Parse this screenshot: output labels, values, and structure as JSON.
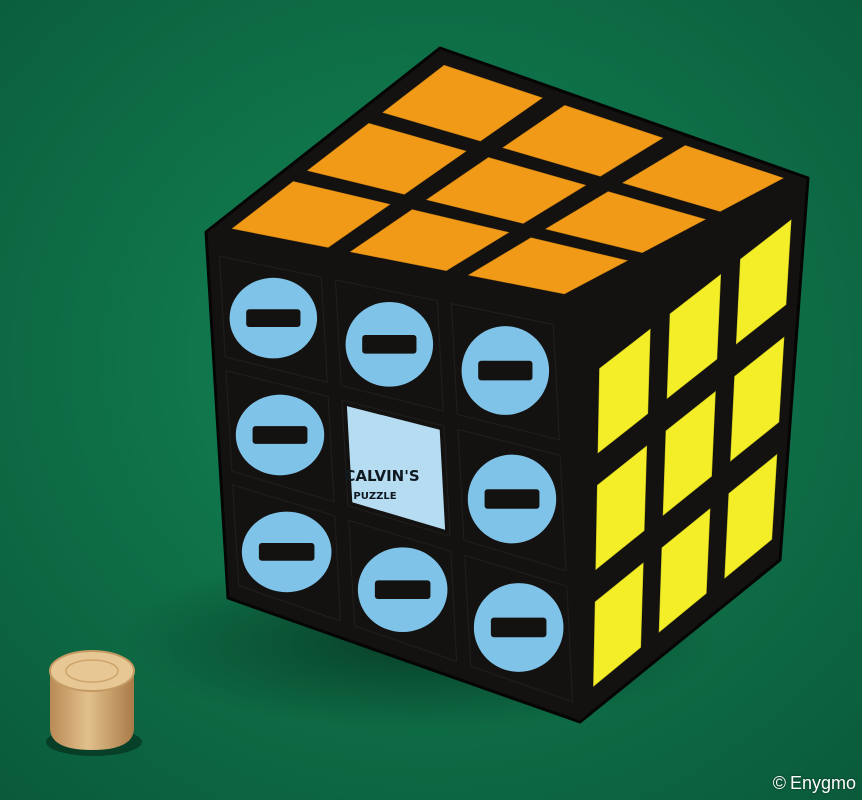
{
  "photo": {
    "subject": "3x3 twisty puzzle cube with orange top, yellow right face and blue circle-stickered front face, beside a small wooden cylinder on green felt",
    "colors": {
      "felt": "#0f7a4f",
      "felt_dark": "#0a5e3c",
      "cube_body": "#141210",
      "orange_sticker": "#f09a18",
      "yellow_sticker": "#f4ee28",
      "blue_sticker": "#7fc3e8",
      "logo_tile": "#b6dcf2",
      "wood": "#d8b27c"
    },
    "logo": {
      "line1": "CALVIN'S",
      "line2": "PUZZLE"
    }
  },
  "credit": {
    "symbol": "©",
    "text": "Enygmo"
  }
}
